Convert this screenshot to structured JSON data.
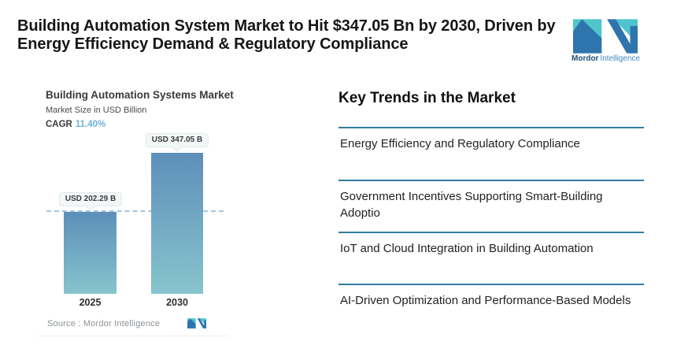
{
  "header": {
    "title": "Building Automation System Market to Hit $347.05 Bn by 2030, Driven by Energy Efficiency Demand & Regulatory Compliance",
    "brand": {
      "name_bold": "Mordor",
      "name_light": "Intelligence"
    }
  },
  "chart": {
    "title": "Building Automation Systems Market",
    "subtitle": "Market Size in USD Billion",
    "cagr_label": "CAGR",
    "cagr_value": "11.40%",
    "source_text": "Source :  Mordor Intelligence"
  },
  "chart_data": {
    "type": "bar",
    "categories": [
      "2025",
      "2030"
    ],
    "values": [
      202.29,
      347.05
    ],
    "value_labels": [
      "USD 202.29 B",
      "USD 347.05 B"
    ],
    "title": "Building Automation Systems Market",
    "ylabel": "Market Size in USD Billion",
    "cagr_percent": 11.4,
    "ylim": [
      0,
      400
    ],
    "reference_line": 202.29,
    "grid": false,
    "legend": "none",
    "bar_gradient": [
      "#5d8fb9",
      "#87c4cd"
    ]
  },
  "trends": {
    "heading": "Key Trends in the Market",
    "items": [
      "Energy Efficiency and Regulatory Compliance",
      "Government Incentives Supporting Smart-Building Adoptio",
      "IoT and Cloud Integration in Building Automation",
      "AI-Driven Optimization and Performance-Based Models"
    ]
  },
  "colors": {
    "accent_teal_divider": "#2f7d9e",
    "bar_gradient_top": "#5d8fb9",
    "bar_gradient_bottom": "#87c4cd",
    "cagr_value_blue": "#6fb3d9",
    "dashed_line_blue": "#a5c6e0",
    "logo_dark_blue": "#2e75ad",
    "logo_teal": "#4fc4cd",
    "brand_dark": "#1c4f7c",
    "brand_light": "#4186c2",
    "headline_text": "#161616",
    "body_text": "#222222",
    "muted_text": "#8d9296"
  }
}
